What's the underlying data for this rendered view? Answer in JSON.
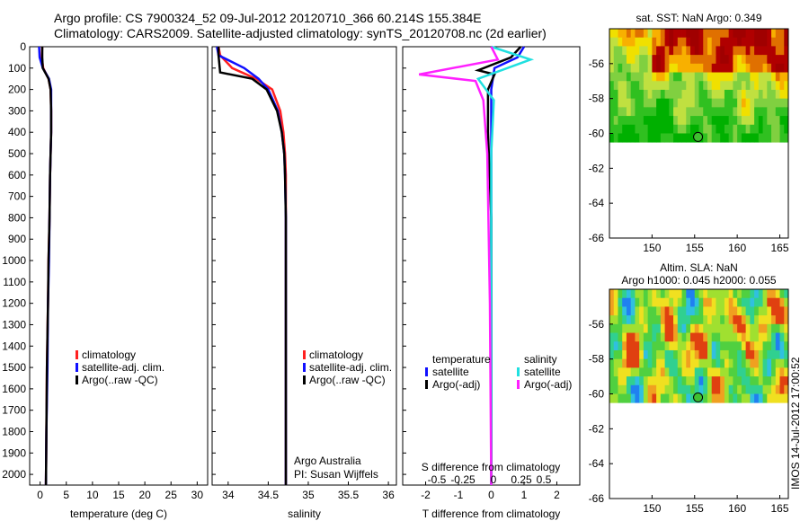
{
  "header": {
    "line1": "Argo profile: CS 7900324_52 09-Jul-2012 20120710_366 60.214S 155.384E",
    "line2": "Climatology: CARS2009. Satellite-adjusted climatology: synTS_20120708.nc (2d earlier)"
  },
  "colors": {
    "climatology": "#ff2020",
    "satellite": "#1010ff",
    "argo": "#000000",
    "salinity_satellite": "#20e0e0",
    "salinity_argo": "#ff20ff"
  },
  "footer": {
    "argo_label": "Argo Australia",
    "pi_label": "PI: Susan Wijffels",
    "stamp": "IMOS 14-Jul-2012 17:00:52"
  },
  "chart_data": [
    {
      "type": "line",
      "panel": "temperature",
      "xlabel": "temperature (deg C)",
      "xlim": [
        -2,
        32
      ],
      "xticks": [
        "0",
        "5",
        "10",
        "15",
        "20",
        "25",
        "30"
      ],
      "ylim": [
        2050,
        0
      ],
      "yticks": [
        "0",
        "100",
        "200",
        "300",
        "400",
        "500",
        "600",
        "700",
        "800",
        "900",
        "1000",
        "1100",
        "1200",
        "1300",
        "1400",
        "1500",
        "1600",
        "1700",
        "1800",
        "1900",
        "2000"
      ],
      "legend": [
        "climatology",
        "satellite-adj. clim.",
        "Argo(..raw -QC)"
      ],
      "series": [
        {
          "name": "climatology",
          "color": "#ff2020",
          "x": [
            0.4,
            0.3,
            0.6,
            1.6,
            2.0,
            2.1,
            2.1,
            2.0,
            1.9,
            1.8,
            1.6,
            1.5,
            1.3,
            1.2,
            1.1
          ],
          "y": [
            0,
            50,
            100,
            150,
            200,
            300,
            400,
            500,
            600,
            800,
            1000,
            1200,
            1500,
            1800,
            2050
          ]
        },
        {
          "name": "satellite-adj. clim.",
          "color": "#1010ff",
          "x": [
            -0.2,
            -0.1,
            0.5,
            1.7,
            2.1,
            2.1,
            2.1,
            2.0,
            1.9,
            1.8,
            1.7,
            1.5,
            1.4,
            1.2,
            1.1
          ],
          "y": [
            0,
            50,
            100,
            150,
            200,
            300,
            400,
            500,
            600,
            800,
            1000,
            1200,
            1500,
            1800,
            2050
          ]
        },
        {
          "name": "Argo(..raw -QC)",
          "color": "#000000",
          "x": [
            0.4,
            0.4,
            0.5,
            1.6,
            2.0,
            2.1,
            2.1,
            2.0,
            1.9,
            1.8,
            1.6,
            1.5,
            1.3,
            1.2,
            1.1
          ],
          "y": [
            0,
            50,
            100,
            150,
            200,
            300,
            400,
            500,
            600,
            800,
            1000,
            1200,
            1500,
            1800,
            2050
          ]
        }
      ]
    },
    {
      "type": "line",
      "panel": "salinity",
      "xlabel": "salinity",
      "xlim": [
        33.8,
        36.1
      ],
      "xticks": [
        "34",
        "34.5",
        "35",
        "35.5",
        "36"
      ],
      "ylim": [
        2050,
        0
      ],
      "legend": [
        "climatology",
        "satellite-adj. clim.",
        "Argo(..raw -QC)"
      ],
      "series": [
        {
          "name": "climatology",
          "color": "#ff2020",
          "x": [
            33.88,
            33.9,
            34.05,
            34.35,
            34.55,
            34.65,
            34.69,
            34.71,
            34.72,
            34.72,
            34.72,
            34.72,
            34.72,
            34.72
          ],
          "y": [
            0,
            40,
            100,
            150,
            200,
            300,
            400,
            500,
            600,
            800,
            1000,
            1300,
            1700,
            2050
          ]
        },
        {
          "name": "satellite-adj. clim.",
          "color": "#1010ff",
          "x": [
            33.86,
            33.88,
            34.2,
            34.38,
            34.5,
            34.62,
            34.67,
            34.7,
            34.71,
            34.72,
            34.72,
            34.72,
            34.72,
            34.72
          ],
          "y": [
            0,
            40,
            100,
            150,
            200,
            300,
            400,
            500,
            600,
            800,
            1000,
            1300,
            1700,
            2050
          ]
        },
        {
          "name": "Argo(..raw -QC)",
          "color": "#000000",
          "x": [
            33.88,
            33.88,
            33.9,
            34.3,
            34.48,
            34.61,
            34.67,
            34.7,
            34.71,
            34.72,
            34.72,
            34.72,
            34.72,
            34.72
          ],
          "y": [
            0,
            40,
            120,
            150,
            200,
            300,
            400,
            500,
            600,
            800,
            1000,
            1300,
            1700,
            2050
          ]
        }
      ]
    },
    {
      "type": "line",
      "panel": "difference",
      "xlabel": "T difference from climatology",
      "top_label": "S difference from climatology",
      "xlim": [
        -2.7,
        2.7
      ],
      "xticks": [
        "-2",
        "-1",
        "0",
        "1",
        "2"
      ],
      "top_xticks": [
        "-0.5",
        "-0.25",
        "0",
        "0.25",
        "0.5"
      ],
      "ylim": [
        2050,
        0
      ],
      "legend": {
        "temperature": [
          "satellite",
          "Argo(-adj)"
        ],
        "salinity": [
          "satellite",
          "Argo(-adj)"
        ]
      },
      "series": [
        {
          "name": "satellite",
          "group": "temperature",
          "color": "#1010ff",
          "x": [
            1.0,
            0.8,
            0.1,
            0.05,
            0.0,
            0.0,
            0.0,
            0.0,
            0.0
          ],
          "y": [
            0,
            50,
            100,
            150,
            200,
            400,
            800,
            1400,
            2050
          ]
        },
        {
          "name": "Argo(-adj)",
          "group": "temperature",
          "color": "#000000",
          "x": [
            0.9,
            0.6,
            -0.4,
            0.1,
            -0.1,
            -0.1,
            0.0,
            0.0,
            0.0
          ],
          "y": [
            0,
            50,
            110,
            130,
            200,
            400,
            800,
            1400,
            2050
          ]
        },
        {
          "name": "satellite",
          "group": "salinity",
          "color": "#20e0e0",
          "x": [
            0.0,
            0.3,
            -0.1,
            0.02,
            0.0,
            0.0,
            0.0
          ],
          "y": [
            0,
            60,
            150,
            250,
            500,
            1200,
            2050
          ]
        },
        {
          "name": "Argo(-adj)",
          "group": "salinity",
          "color": "#ff20ff",
          "x": [
            0.0,
            0.05,
            -0.55,
            -0.12,
            -0.06,
            -0.03,
            -0.01,
            0.0
          ],
          "y": [
            0,
            60,
            130,
            160,
            250,
            500,
            1200,
            2050
          ]
        }
      ]
    },
    {
      "type": "heatmap",
      "panel": "sst",
      "title": "sat. SST: NaN Argo: 0.349",
      "xlim": [
        145,
        166
      ],
      "ylim": [
        -66,
        -54
      ],
      "xticks": [
        "150",
        "155",
        "160",
        "165"
      ],
      "yticks": [
        "-56",
        "-58",
        "-60",
        "-62",
        "-64",
        "-66"
      ],
      "marker": {
        "lon": 155.4,
        "lat": -60.2
      },
      "data_lat_range": [
        -60.2,
        -54
      ]
    },
    {
      "type": "heatmap",
      "panel": "sla",
      "title": "Altim. SLA: NaN",
      "subtitle": "Argo h1000: 0.045 h2000: 0.055",
      "xlim": [
        145,
        166
      ],
      "ylim": [
        -66,
        -54
      ],
      "xticks": [
        "150",
        "155",
        "160",
        "165"
      ],
      "yticks": [
        "-56",
        "-58",
        "-60",
        "-62",
        "-64",
        "-66"
      ],
      "marker": {
        "lon": 155.4,
        "lat": -60.2
      },
      "data_lat_range": [
        -60.2,
        -54
      ]
    }
  ]
}
